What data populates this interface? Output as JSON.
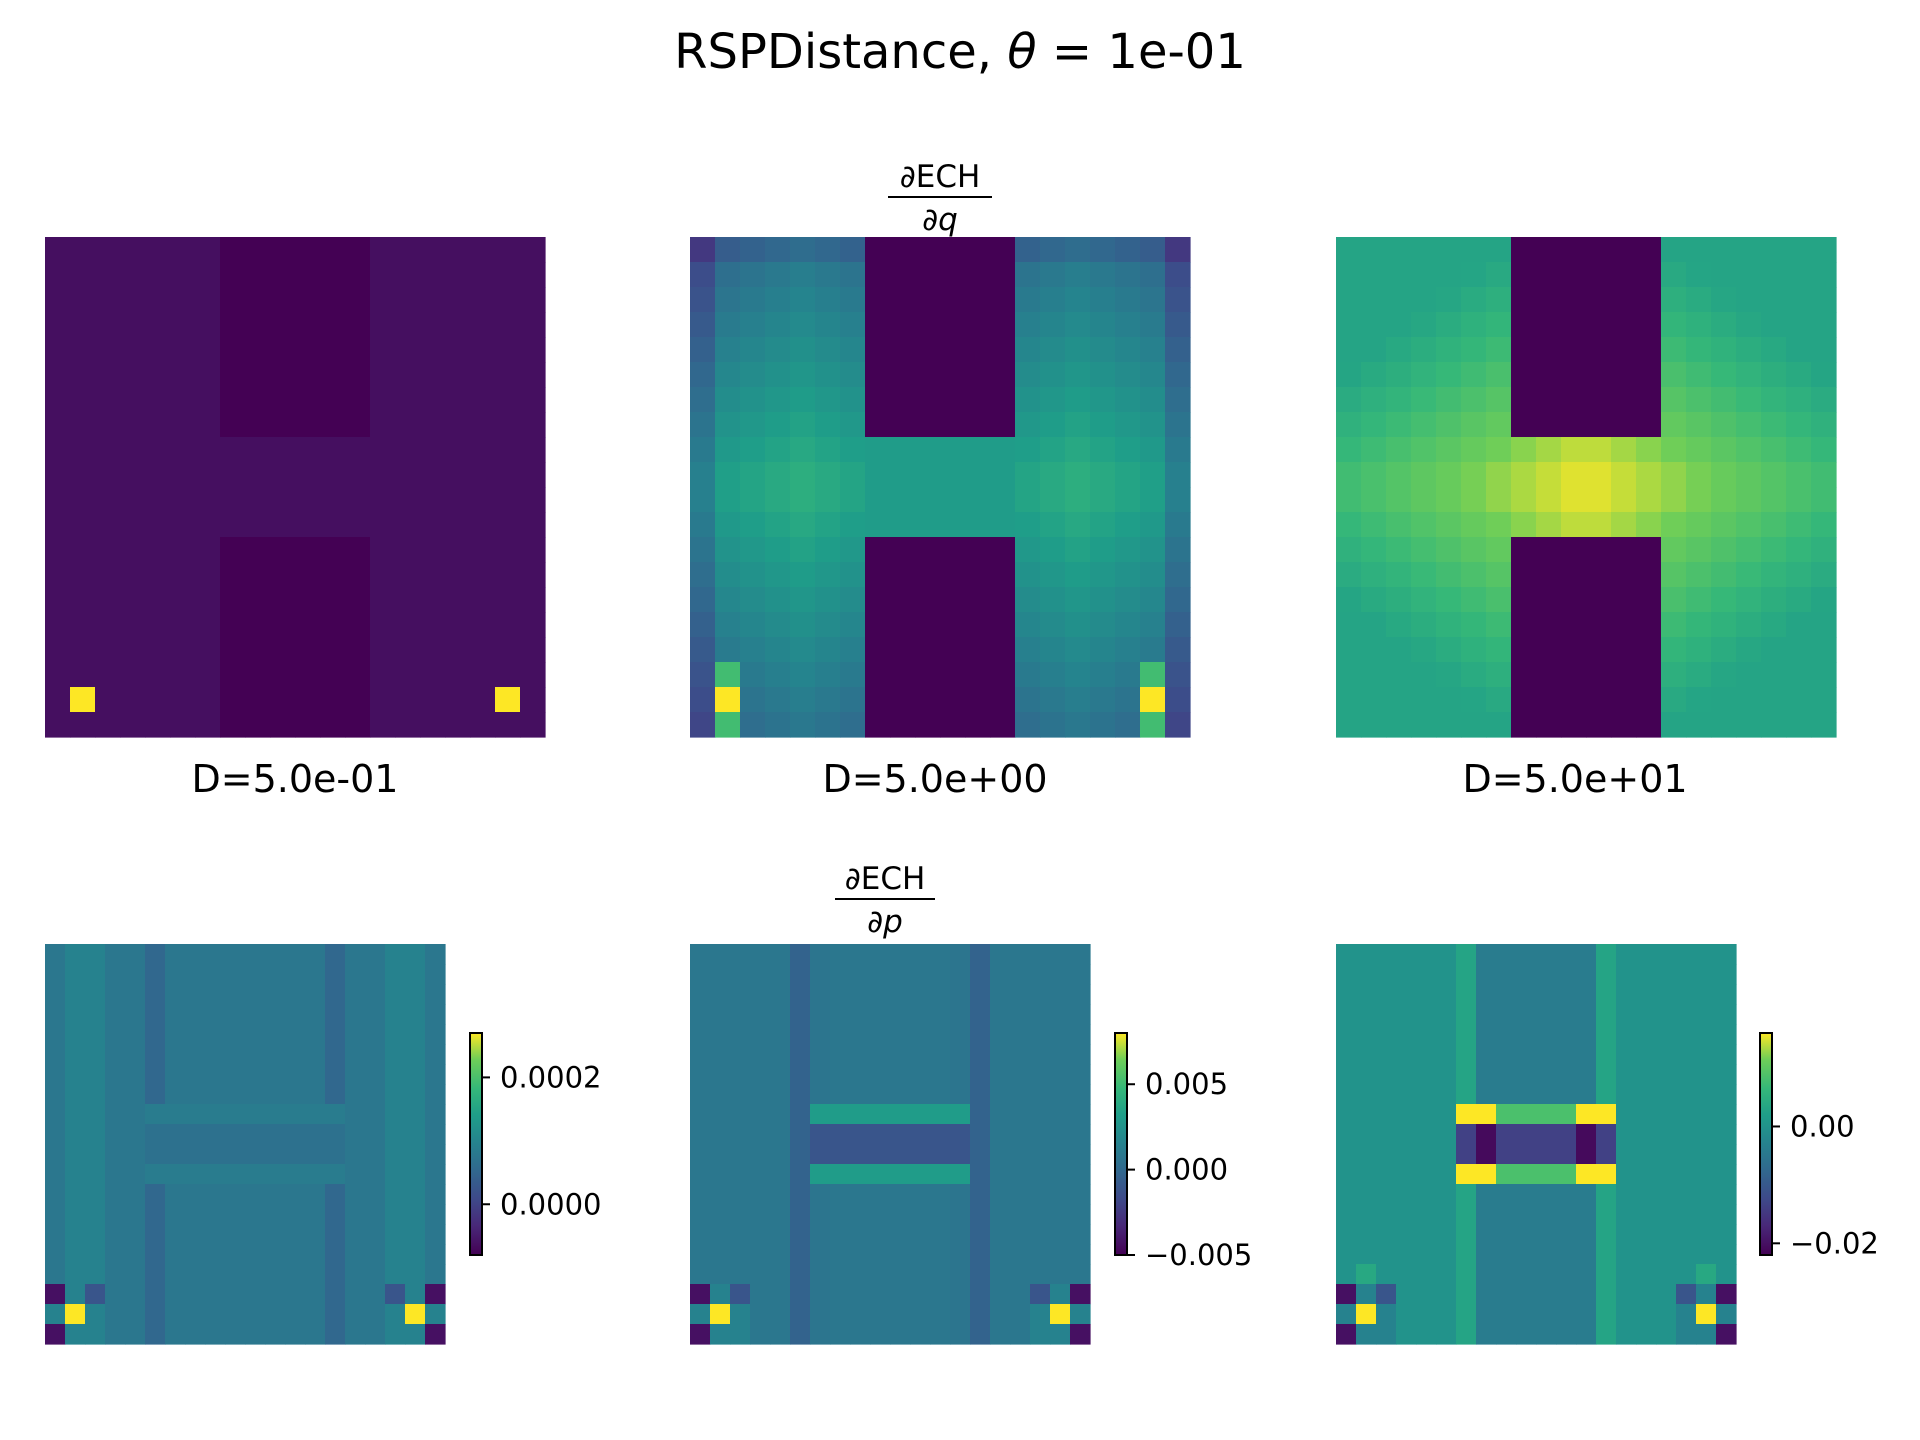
{
  "title": {
    "prefix": "RSPDistance, ",
    "theta": "θ",
    "equals": " = ",
    "value": "1e-01"
  },
  "chart_data": [
    {
      "type": "heatmap",
      "row": "top",
      "column": 1,
      "subtitle": "",
      "xlabel": "D=5.0e-01",
      "colormap": "viridis",
      "grid": false,
      "shape": [
        20,
        20
      ],
      "description_hidden": true
    },
    {
      "type": "heatmap",
      "row": "top",
      "column": 2,
      "subtitle": "∂ECH / ∂q",
      "xlabel": "D=5.0e+00",
      "colormap": "viridis",
      "grid": false,
      "shape": [
        20,
        20
      ]
    },
    {
      "type": "heatmap",
      "row": "top",
      "column": 3,
      "subtitle": "",
      "xlabel": "D=5.0e+01",
      "colormap": "viridis",
      "grid": false,
      "shape": [
        20,
        20
      ]
    },
    {
      "type": "heatmap",
      "row": "bottom",
      "column": 1,
      "subtitle": "",
      "colormap": "viridis",
      "grid": false,
      "shape": [
        20,
        20
      ],
      "colorbar": {
        "ticks": [
          "0.0002",
          "0.0000"
        ],
        "tick_values": [
          0.0002,
          0.0
        ],
        "range": [
          -8e-05,
          0.00027
        ]
      }
    },
    {
      "type": "heatmap",
      "row": "bottom",
      "column": 2,
      "subtitle": "∂ECH / ∂p",
      "colormap": "viridis",
      "grid": false,
      "shape": [
        20,
        20
      ],
      "colorbar": {
        "ticks": [
          "0.005",
          "0.000",
          "−0.005"
        ],
        "tick_values": [
          0.005,
          0.0,
          -0.005
        ],
        "range": [
          -0.005,
          0.008
        ]
      }
    },
    {
      "type": "heatmap",
      "row": "bottom",
      "column": 3,
      "subtitle": "",
      "colormap": "viridis",
      "grid": false,
      "shape": [
        20,
        20
      ],
      "colorbar": {
        "ticks": [
          "0.00",
          "−0.02"
        ],
        "tick_values": [
          0.0,
          -0.02
        ],
        "range": [
          -0.022,
          0.016
        ]
      }
    }
  ],
  "fractions": {
    "q": {
      "num": "∂ECH",
      "den": "∂q"
    },
    "p": {
      "num": "∂ECH",
      "den": "∂p"
    }
  }
}
